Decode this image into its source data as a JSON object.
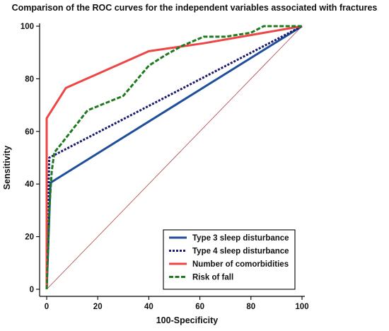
{
  "chart_data": {
    "type": "line",
    "title": "Comparison of the ROC curves for the independent variables associated with fractures",
    "xlabel": "100-Specificity",
    "ylabel": "Sensitivity",
    "xlim": [
      0,
      100
    ],
    "ylim": [
      0,
      100
    ],
    "x_ticks": [
      0,
      20,
      40,
      60,
      80,
      100
    ],
    "y_ticks": [
      0,
      20,
      40,
      60,
      80,
      100
    ],
    "grid": false,
    "legend_position": "bottom-right",
    "reference_line": {
      "points": [
        [
          0,
          0
        ],
        [
          100,
          100
        ]
      ],
      "color": "#b04040"
    },
    "series": [
      {
        "name": "Type 3 sleep disturbance",
        "color": "#1f4e9a",
        "dash": "solid",
        "points": [
          [
            0,
            0
          ],
          [
            1.5,
            40.5
          ],
          [
            100,
            100
          ]
        ]
      },
      {
        "name": "Type 4 sleep disturbance",
        "color": "#1a1a6e",
        "dash": "dotted",
        "points": [
          [
            0,
            0
          ],
          [
            1,
            50
          ],
          [
            100,
            100
          ]
        ]
      },
      {
        "name": "Number of comorbidities",
        "color": "#ee4545",
        "dash": "solid",
        "points": [
          [
            0,
            0
          ],
          [
            0,
            65
          ],
          [
            7.5,
            76.5
          ],
          [
            40,
            90.5
          ],
          [
            61.5,
            93.5
          ],
          [
            100,
            100
          ]
        ]
      },
      {
        "name": "Risk of fall",
        "color": "#1e7a1e",
        "dash": "dashed",
        "points": [
          [
            0,
            0
          ],
          [
            1,
            30
          ],
          [
            2,
            45
          ],
          [
            3,
            52
          ],
          [
            5.5,
            55
          ],
          [
            16,
            68
          ],
          [
            30,
            73.5
          ],
          [
            40,
            85
          ],
          [
            46.5,
            89
          ],
          [
            53,
            92.5
          ],
          [
            61.5,
            96
          ],
          [
            70,
            96
          ],
          [
            80,
            97.5
          ],
          [
            85,
            100
          ],
          [
            100,
            100
          ]
        ]
      }
    ]
  }
}
